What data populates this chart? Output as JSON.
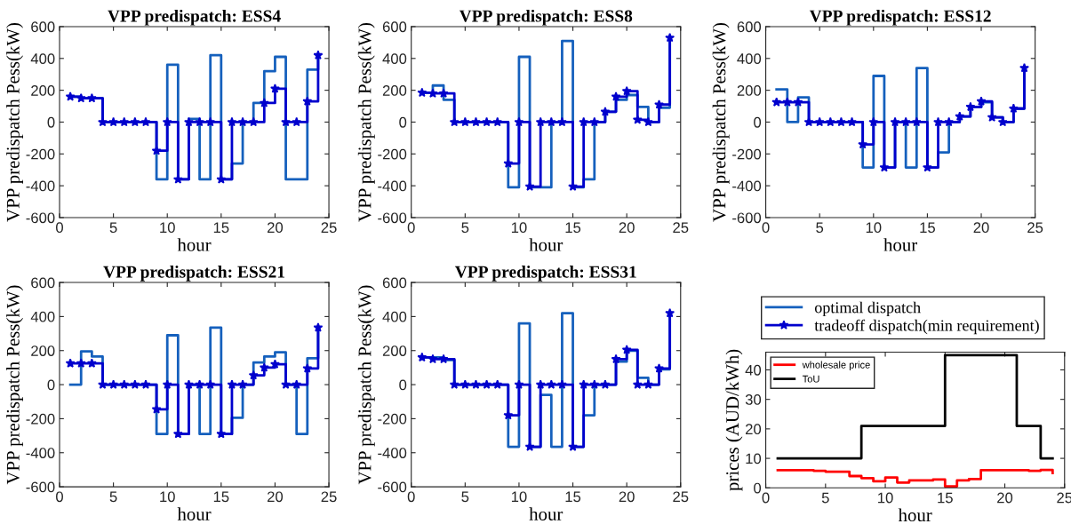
{
  "chart_data": [
    {
      "type": "step",
      "title": "VPP predispatch: ESS4",
      "xlabel": "hour",
      "ylabel": "VPP predispatch Pess(kW)",
      "x": [
        1,
        2,
        3,
        4,
        5,
        6,
        7,
        8,
        9,
        10,
        11,
        12,
        13,
        14,
        15,
        16,
        17,
        18,
        19,
        20,
        21,
        22,
        23,
        24
      ],
      "xlim": [
        0,
        25
      ],
      "xticks": [
        0,
        5,
        10,
        15,
        20,
        25
      ],
      "ylim": [
        -600,
        600
      ],
      "yticks": [
        -600,
        -400,
        -200,
        0,
        200,
        400,
        600
      ],
      "grid": false,
      "legend": false,
      "series": [
        {
          "color": "#1560bd",
          "marker": "none",
          "values": [
            160,
            150,
            150,
            0,
            0,
            0,
            0,
            0,
            -360,
            360,
            -360,
            20,
            -360,
            420,
            -360,
            -260,
            0,
            120,
            320,
            410,
            -360,
            -360,
            330,
            420
          ]
        },
        {
          "color": "#0000cd",
          "marker": "star",
          "values": [
            160,
            150,
            150,
            0,
            0,
            0,
            0,
            0,
            -180,
            0,
            -360,
            0,
            0,
            0,
            -360,
            0,
            0,
            0,
            120,
            210,
            0,
            0,
            130,
            420
          ]
        }
      ]
    },
    {
      "type": "step",
      "title": "VPP predispatch: ESS8",
      "xlabel": "hour",
      "ylabel": "VPP predispatch Pess(kW)",
      "x": [
        1,
        2,
        3,
        4,
        5,
        6,
        7,
        8,
        9,
        10,
        11,
        12,
        13,
        14,
        15,
        16,
        17,
        18,
        19,
        20,
        21,
        22,
        23,
        24
      ],
      "xlim": [
        0,
        25
      ],
      "xticks": [
        0,
        5,
        10,
        15,
        20,
        25
      ],
      "ylim": [
        -600,
        600
      ],
      "yticks": [
        -600,
        -400,
        -200,
        0,
        200,
        400,
        600
      ],
      "grid": false,
      "legend": false,
      "series": [
        {
          "color": "#1560bd",
          "marker": "none",
          "values": [
            185,
            230,
            140,
            0,
            0,
            0,
            0,
            0,
            -410,
            410,
            -410,
            -410,
            0,
            510,
            -410,
            -360,
            0,
            65,
            140,
            170,
            95,
            0,
            90,
            530
          ]
        },
        {
          "color": "#0000cd",
          "marker": "star",
          "values": [
            185,
            180,
            180,
            0,
            0,
            0,
            0,
            0,
            -260,
            0,
            -405,
            0,
            0,
            0,
            -405,
            0,
            0,
            65,
            160,
            195,
            15,
            0,
            110,
            530
          ]
        }
      ]
    },
    {
      "type": "step",
      "title": "VPP predispatch: ESS12",
      "xlabel": "hour",
      "ylabel": "VPP predispatch Pess(kW)",
      "x": [
        1,
        2,
        3,
        4,
        5,
        6,
        7,
        8,
        9,
        10,
        11,
        12,
        13,
        14,
        15,
        16,
        17,
        18,
        19,
        20,
        21,
        22,
        23,
        24
      ],
      "xlim": [
        0,
        25
      ],
      "xticks": [
        0,
        5,
        10,
        15,
        20,
        25
      ],
      "ylim": [
        -600,
        600
      ],
      "yticks": [
        -600,
        -400,
        -200,
        0,
        200,
        400,
        600
      ],
      "grid": false,
      "legend": false,
      "series": [
        {
          "color": "#1560bd",
          "marker": "none",
          "values": [
            205,
            0,
            155,
            0,
            0,
            0,
            0,
            0,
            -285,
            290,
            -285,
            0,
            -285,
            340,
            -285,
            -190,
            0,
            35,
            95,
            125,
            30,
            0,
            85,
            340
          ]
        },
        {
          "color": "#0000cd",
          "marker": "star",
          "values": [
            125,
            125,
            125,
            0,
            0,
            0,
            0,
            0,
            -140,
            0,
            -285,
            0,
            0,
            0,
            -285,
            0,
            0,
            35,
            95,
            130,
            30,
            0,
            85,
            340
          ]
        }
      ]
    },
    {
      "type": "step",
      "title": "VPP predispatch: ESS21",
      "xlabel": "hour",
      "ylabel": "VPP predispatch Pess(kW)",
      "x": [
        1,
        2,
        3,
        4,
        5,
        6,
        7,
        8,
        9,
        10,
        11,
        12,
        13,
        14,
        15,
        16,
        17,
        18,
        19,
        20,
        21,
        22,
        23,
        24
      ],
      "xlim": [
        0,
        25
      ],
      "xticks": [
        0,
        5,
        10,
        15,
        20,
        25
      ],
      "ylim": [
        -600,
        600
      ],
      "yticks": [
        -600,
        -400,
        -200,
        0,
        200,
        400,
        600
      ],
      "grid": false,
      "legend": false,
      "series": [
        {
          "color": "#1560bd",
          "marker": "none",
          "values": [
            0,
            195,
            165,
            0,
            0,
            0,
            0,
            0,
            -290,
            290,
            -290,
            0,
            -290,
            335,
            -290,
            -195,
            0,
            130,
            165,
            190,
            0,
            -290,
            155,
            335
          ]
        },
        {
          "color": "#0000cd",
          "marker": "star",
          "values": [
            125,
            125,
            125,
            0,
            0,
            0,
            0,
            0,
            -145,
            0,
            -290,
            0,
            0,
            0,
            -290,
            0,
            0,
            55,
            100,
            120,
            0,
            0,
            95,
            335
          ]
        }
      ]
    },
    {
      "type": "step",
      "title": "VPP predispatch: ESS31",
      "xlabel": "hour",
      "ylabel": "VPP predispatch Pess(kW)",
      "x": [
        1,
        2,
        3,
        4,
        5,
        6,
        7,
        8,
        9,
        10,
        11,
        12,
        13,
        14,
        15,
        16,
        17,
        18,
        19,
        20,
        21,
        22,
        23,
        24
      ],
      "xlim": [
        0,
        25
      ],
      "xticks": [
        0,
        5,
        10,
        15,
        20,
        25
      ],
      "ylim": [
        -600,
        600
      ],
      "yticks": [
        -600,
        -400,
        -200,
        0,
        200,
        400,
        600
      ],
      "grid": false,
      "legend": "right",
      "series": [
        {
          "name": "optimal dispatch",
          "color": "#1560bd",
          "marker": "none",
          "values": [
            160,
            160,
            145,
            0,
            0,
            0,
            0,
            0,
            -365,
            360,
            -365,
            -60,
            -365,
            420,
            -365,
            -180,
            0,
            0,
            135,
            200,
            40,
            0,
            90,
            420
          ]
        },
        {
          "name": "tradeoff dispatch(min requirement)",
          "color": "#0000cd",
          "marker": "star",
          "values": [
            160,
            150,
            150,
            0,
            0,
            0,
            0,
            0,
            -180,
            0,
            -365,
            0,
            0,
            0,
            -365,
            0,
            0,
            0,
            150,
            205,
            0,
            0,
            95,
            420
          ]
        }
      ]
    },
    {
      "type": "step",
      "xlabel": "hour",
      "ylabel": "prices (AUD/kWh)",
      "x": [
        1,
        2,
        3,
        4,
        5,
        6,
        7,
        8,
        9,
        10,
        11,
        12,
        13,
        14,
        15,
        16,
        17,
        18,
        19,
        20,
        21,
        22,
        23,
        24
      ],
      "xlim": [
        0,
        25
      ],
      "xticks": [
        0,
        5,
        10,
        15,
        20,
        25
      ],
      "ylim": [
        0,
        46
      ],
      "yticks": [
        0,
        10,
        20,
        30,
        40
      ],
      "grid": false,
      "legend": "top left",
      "series": [
        {
          "name": "wholesale price",
          "color": "#ff0000",
          "marker": "none",
          "values": [
            6,
            6,
            6,
            5.8,
            5.5,
            5.5,
            4,
            3.3,
            2.2,
            3.5,
            1.8,
            2.5,
            2.5,
            2.8,
            0.5,
            2.5,
            3,
            6,
            6,
            6,
            6,
            5.8,
            6.1,
            5
          ]
        },
        {
          "name": "ToU",
          "color": "#000000",
          "marker": "none",
          "values": [
            10,
            10,
            10,
            10,
            10,
            10,
            10,
            21,
            21,
            21,
            21,
            21,
            21,
            21,
            45,
            45,
            45,
            45,
            45,
            45,
            21,
            21,
            10,
            10
          ]
        }
      ]
    }
  ]
}
